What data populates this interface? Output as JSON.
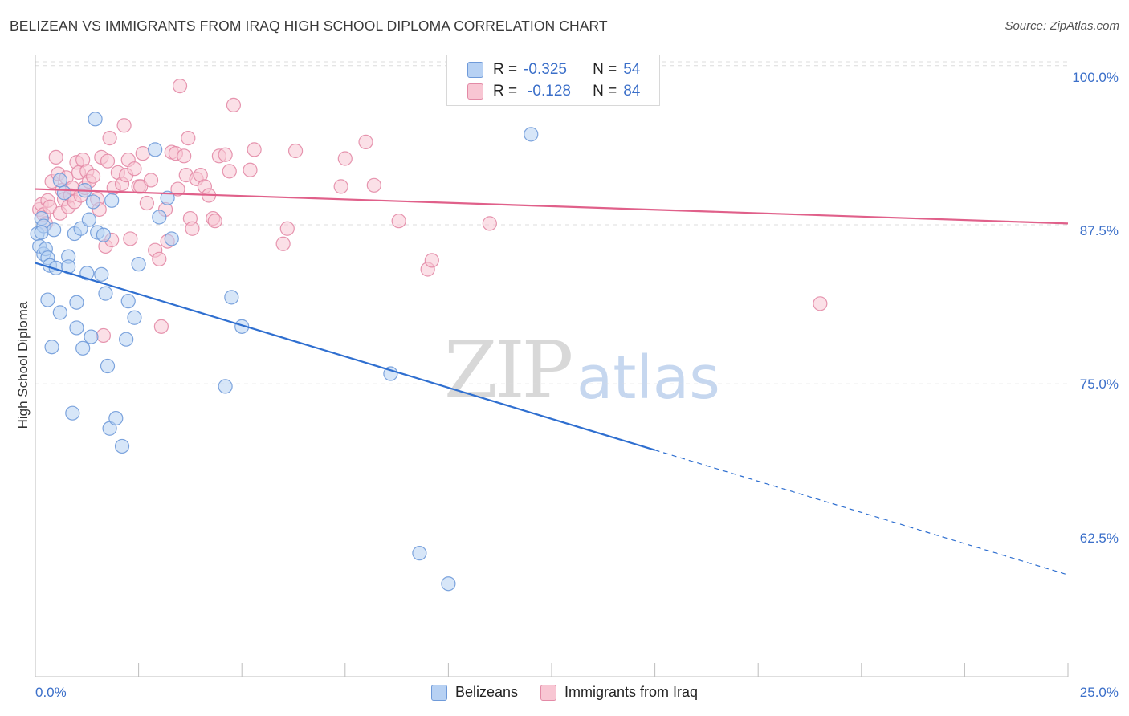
{
  "title": "BELIZEAN VS IMMIGRANTS FROM IRAQ HIGH SCHOOL DIPLOMA CORRELATION CHART",
  "source": "Source: ZipAtlas.com",
  "watermark": {
    "zip": "ZIP",
    "atlas": "atlas"
  },
  "legend_top": {
    "blue": {
      "r_label": "R =",
      "r_value": "-0.325",
      "n_label": "N =",
      "n_value": "54"
    },
    "pink": {
      "r_label": "R =",
      "r_value": "-0.128",
      "n_label": "N =",
      "n_value": "84"
    }
  },
  "legend_bottom": {
    "blue": "Belizeans",
    "pink": "Immigrants from Iraq"
  },
  "colors": {
    "blue_fill": "#b7d1f3",
    "blue_stroke": "#6f9ad9",
    "blue_line": "#2f6fd0",
    "pink_fill": "#f8c6d3",
    "pink_stroke": "#e38aa6",
    "pink_line": "#e0608a",
    "tick_text": "#3b6fc9",
    "grid": "#dcdcdc"
  },
  "chart_data": {
    "type": "scatter",
    "title": "BELIZEAN VS IMMIGRANTS FROM IRAQ HIGH SCHOOL DIPLOMA CORRELATION CHART",
    "xlabel": "",
    "ylabel": "High School Diploma",
    "xlim": [
      0,
      25
    ],
    "ylim": [
      52,
      102
    ],
    "x_tick_labels": [
      "0.0%",
      "25.0%"
    ],
    "y_ticks": [
      62.5,
      75.0,
      87.5,
      100.0
    ],
    "y_tick_labels": [
      "62.5%",
      "75.0%",
      "87.5%",
      "100.0%"
    ],
    "grid": true,
    "legend_position": "top-center",
    "series": [
      {
        "name": "Belizeans",
        "r": -0.325,
        "n": 54,
        "trend": {
          "x": [
            0,
            15,
            25
          ],
          "y": [
            84.5,
            69.8,
            60.0
          ],
          "solid_until_x": 15
        },
        "points": [
          [
            0.05,
            86.8
          ],
          [
            0.1,
            85.8
          ],
          [
            0.15,
            88.0
          ],
          [
            0.2,
            85.2
          ],
          [
            0.25,
            85.6
          ],
          [
            0.3,
            84.9
          ],
          [
            0.2,
            87.4
          ],
          [
            0.15,
            86.9
          ],
          [
            0.3,
            81.6
          ],
          [
            0.35,
            84.3
          ],
          [
            0.45,
            87.1
          ],
          [
            0.4,
            77.9
          ],
          [
            0.5,
            84.1
          ],
          [
            0.6,
            80.6
          ],
          [
            0.6,
            91.0
          ],
          [
            0.7,
            90.0
          ],
          [
            0.8,
            85.0
          ],
          [
            0.8,
            84.2
          ],
          [
            0.9,
            72.7
          ],
          [
            0.95,
            86.8
          ],
          [
            1.0,
            79.4
          ],
          [
            1.0,
            81.4
          ],
          [
            1.1,
            87.2
          ],
          [
            1.15,
            77.8
          ],
          [
            1.2,
            90.2
          ],
          [
            1.25,
            83.7
          ],
          [
            1.3,
            87.9
          ],
          [
            1.35,
            78.7
          ],
          [
            1.4,
            89.3
          ],
          [
            1.45,
            95.8
          ],
          [
            1.5,
            86.9
          ],
          [
            1.6,
            83.6
          ],
          [
            1.65,
            86.7
          ],
          [
            1.7,
            82.1
          ],
          [
            1.75,
            76.4
          ],
          [
            1.8,
            71.5
          ],
          [
            1.85,
            89.4
          ],
          [
            1.95,
            72.3
          ],
          [
            2.1,
            70.1
          ],
          [
            2.2,
            78.5
          ],
          [
            2.25,
            81.5
          ],
          [
            2.4,
            80.2
          ],
          [
            2.5,
            84.4
          ],
          [
            2.9,
            93.4
          ],
          [
            3.0,
            88.1
          ],
          [
            3.2,
            89.6
          ],
          [
            3.3,
            86.4
          ],
          [
            4.6,
            74.8
          ],
          [
            4.75,
            81.8
          ],
          [
            5.0,
            79.5
          ],
          [
            8.6,
            75.8
          ],
          [
            9.3,
            61.7
          ],
          [
            10.0,
            59.3
          ],
          [
            12.0,
            94.6
          ]
        ]
      },
      {
        "name": "Immigrants from Iraq",
        "r": -0.128,
        "n": 84,
        "trend": {
          "x": [
            0,
            25
          ],
          "y": [
            90.3,
            87.6
          ],
          "solid_until_x": 25
        },
        "points": [
          [
            0.1,
            88.7
          ],
          [
            0.15,
            89.1
          ],
          [
            0.2,
            88.3
          ],
          [
            0.25,
            87.6
          ],
          [
            0.3,
            89.4
          ],
          [
            0.35,
            88.9
          ],
          [
            0.4,
            90.9
          ],
          [
            0.5,
            92.8
          ],
          [
            0.55,
            91.5
          ],
          [
            0.6,
            88.4
          ],
          [
            0.65,
            90.2
          ],
          [
            0.7,
            89.5
          ],
          [
            0.75,
            91.2
          ],
          [
            0.8,
            88.9
          ],
          [
            0.85,
            89.8
          ],
          [
            0.9,
            90.4
          ],
          [
            0.95,
            89.3
          ],
          [
            1.0,
            92.4
          ],
          [
            1.05,
            91.6
          ],
          [
            1.1,
            89.8
          ],
          [
            1.15,
            92.6
          ],
          [
            1.2,
            90.4
          ],
          [
            1.25,
            91.7
          ],
          [
            1.3,
            90.9
          ],
          [
            1.4,
            91.3
          ],
          [
            1.5,
            89.5
          ],
          [
            1.55,
            88.7
          ],
          [
            1.6,
            92.8
          ],
          [
            1.65,
            78.8
          ],
          [
            1.7,
            85.8
          ],
          [
            1.75,
            92.5
          ],
          [
            1.8,
            94.3
          ],
          [
            1.85,
            86.3
          ],
          [
            1.9,
            90.4
          ],
          [
            2.0,
            91.6
          ],
          [
            2.1,
            90.7
          ],
          [
            2.15,
            95.3
          ],
          [
            2.2,
            91.4
          ],
          [
            2.25,
            92.6
          ],
          [
            2.3,
            86.4
          ],
          [
            2.4,
            91.9
          ],
          [
            2.5,
            90.5
          ],
          [
            2.55,
            90.5
          ],
          [
            2.6,
            93.1
          ],
          [
            2.7,
            89.2
          ],
          [
            2.8,
            91.0
          ],
          [
            2.9,
            85.5
          ],
          [
            3.0,
            84.8
          ],
          [
            3.05,
            79.5
          ],
          [
            3.15,
            88.7
          ],
          [
            3.2,
            86.2
          ],
          [
            3.3,
            93.2
          ],
          [
            3.4,
            93.1
          ],
          [
            3.45,
            90.3
          ],
          [
            3.5,
            98.4
          ],
          [
            3.6,
            92.9
          ],
          [
            3.65,
            91.4
          ],
          [
            3.7,
            94.3
          ],
          [
            3.75,
            88.0
          ],
          [
            3.8,
            87.2
          ],
          [
            3.9,
            91.1
          ],
          [
            4.0,
            91.4
          ],
          [
            4.1,
            90.5
          ],
          [
            4.2,
            89.8
          ],
          [
            4.3,
            88.0
          ],
          [
            4.35,
            87.8
          ],
          [
            4.45,
            92.9
          ],
          [
            4.6,
            93.0
          ],
          [
            4.7,
            91.7
          ],
          [
            4.8,
            96.9
          ],
          [
            5.2,
            91.8
          ],
          [
            5.3,
            93.4
          ],
          [
            6.0,
            86.0
          ],
          [
            6.1,
            87.2
          ],
          [
            6.3,
            93.3
          ],
          [
            7.4,
            90.5
          ],
          [
            7.5,
            92.7
          ],
          [
            8.0,
            94.0
          ],
          [
            8.2,
            90.6
          ],
          [
            8.8,
            87.8
          ],
          [
            9.5,
            84.0
          ],
          [
            9.6,
            84.7
          ],
          [
            11.0,
            87.6
          ],
          [
            19.0,
            81.3
          ]
        ]
      }
    ]
  }
}
